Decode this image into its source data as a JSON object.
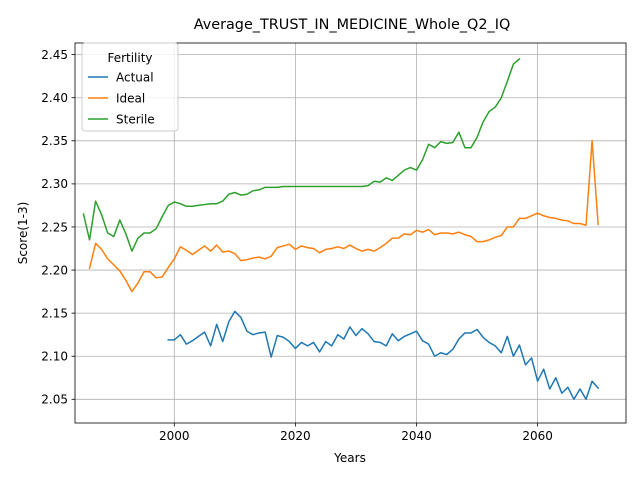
{
  "chart_data": {
    "type": "line",
    "title": "Average_TRUST_IN_MEDICINE_Whole_Q2_IQ",
    "xlabel": "Years",
    "ylabel": "Score(1-3)",
    "xlim": [
      1983.6,
      2074.6
    ],
    "ylim": [
      2.0225,
      2.4635
    ],
    "xticks": [
      2000,
      2020,
      2040,
      2060
    ],
    "yticks": [
      2.05,
      2.1,
      2.15,
      2.2,
      2.25,
      2.3,
      2.35,
      2.4,
      2.45
    ],
    "ytick_labels": [
      "2.05",
      "2.10",
      "2.15",
      "2.20",
      "2.25",
      "2.30",
      "2.35",
      "2.40",
      "2.45"
    ],
    "grid": true,
    "legend": {
      "title": "Fertility",
      "placement": "top-left"
    },
    "series": [
      {
        "name": "Actual",
        "color": "#1f77b4",
        "x": [
          1999,
          2000,
          2001,
          2002,
          2003,
          2004,
          2005,
          2006,
          2007,
          2008,
          2009,
          2010,
          2011,
          2012,
          2013,
          2014,
          2015,
          2016,
          2017,
          2018,
          2019,
          2020,
          2021,
          2022,
          2023,
          2024,
          2025,
          2026,
          2027,
          2028,
          2029,
          2030,
          2031,
          2032,
          2033,
          2034,
          2035,
          2036,
          2037,
          2038,
          2039,
          2040,
          2041,
          2042,
          2043,
          2044,
          2045,
          2046,
          2047,
          2048,
          2049,
          2050,
          2051,
          2052,
          2053,
          2054,
          2055,
          2056,
          2057,
          2058,
          2059,
          2060,
          2061,
          2062,
          2063,
          2064,
          2065,
          2066,
          2067,
          2068,
          2069,
          2070
        ],
        "values": [
          2.119,
          2.119,
          2.125,
          2.114,
          2.118,
          2.123,
          2.128,
          2.112,
          2.137,
          2.117,
          2.14,
          2.152,
          2.145,
          2.129,
          2.125,
          2.127,
          2.128,
          2.099,
          2.124,
          2.122,
          2.117,
          2.109,
          2.116,
          2.112,
          2.116,
          2.105,
          2.117,
          2.112,
          2.125,
          2.12,
          2.134,
          2.124,
          2.132,
          2.126,
          2.117,
          2.116,
          2.112,
          2.126,
          2.118,
          2.123,
          2.126,
          2.129,
          2.118,
          2.114,
          2.1,
          2.104,
          2.102,
          2.108,
          2.12,
          2.127,
          2.127,
          2.131,
          2.122,
          2.116,
          2.112,
          2.104,
          2.123,
          2.1,
          2.113,
          2.09,
          2.098,
          2.071,
          2.085,
          2.062,
          2.075,
          2.057,
          2.064,
          2.05,
          2.062,
          2.05,
          2.071,
          2.063
        ]
      },
      {
        "name": "Ideal",
        "color": "#ff7f0e",
        "x": [
          1986,
          1987,
          1988,
          1989,
          1990,
          1991,
          1992,
          1993,
          1994,
          1995,
          1996,
          1997,
          1998,
          1999,
          2000,
          2001,
          2002,
          2003,
          2004,
          2005,
          2006,
          2007,
          2008,
          2009,
          2010,
          2011,
          2012,
          2013,
          2014,
          2015,
          2016,
          2017,
          2018,
          2019,
          2020,
          2021,
          2022,
          2023,
          2024,
          2025,
          2026,
          2027,
          2028,
          2029,
          2030,
          2031,
          2032,
          2033,
          2034,
          2035,
          2036,
          2037,
          2038,
          2039,
          2040,
          2041,
          2042,
          2043,
          2044,
          2045,
          2046,
          2047,
          2048,
          2049,
          2050,
          2051,
          2052,
          2053,
          2054,
          2055,
          2056,
          2057,
          2058,
          2059,
          2060,
          2061,
          2062,
          2063,
          2064,
          2065,
          2066,
          2067,
          2068,
          2069,
          2070
        ],
        "values": [
          2.202,
          2.231,
          2.224,
          2.213,
          2.206,
          2.199,
          2.188,
          2.175,
          2.185,
          2.198,
          2.198,
          2.191,
          2.192,
          2.203,
          2.213,
          2.227,
          2.223,
          2.218,
          2.223,
          2.228,
          2.222,
          2.229,
          2.221,
          2.222,
          2.219,
          2.211,
          2.212,
          2.214,
          2.215,
          2.213,
          2.216,
          2.226,
          2.228,
          2.23,
          2.224,
          2.228,
          2.226,
          2.225,
          2.22,
          2.224,
          2.225,
          2.227,
          2.225,
          2.229,
          2.225,
          2.222,
          2.224,
          2.222,
          2.226,
          2.231,
          2.237,
          2.237,
          2.242,
          2.241,
          2.246,
          2.244,
          2.247,
          2.241,
          2.243,
          2.243,
          2.242,
          2.244,
          2.241,
          2.239,
          2.233,
          2.233,
          2.235,
          2.238,
          2.24,
          2.25,
          2.25,
          2.26,
          2.26,
          2.263,
          2.266,
          2.263,
          2.261,
          2.26,
          2.258,
          2.257,
          2.254,
          2.254,
          2.252,
          2.35,
          2.253
        ]
      },
      {
        "name": "Sterile",
        "color": "#2ca02c",
        "x": [
          1985,
          1986,
          1987,
          1988,
          1989,
          1990,
          1991,
          1992,
          1993,
          1994,
          1995,
          1996,
          1997,
          1998,
          1999,
          2000,
          2001,
          2002,
          2003,
          2004,
          2005,
          2006,
          2007,
          2008,
          2009,
          2010,
          2011,
          2012,
          2013,
          2014,
          2015,
          2016,
          2017,
          2018,
          2019,
          2020,
          2021,
          2022,
          2023,
          2024,
          2025,
          2026,
          2027,
          2028,
          2029,
          2030,
          2031,
          2032,
          2033,
          2034,
          2035,
          2036,
          2037,
          2038,
          2039,
          2040,
          2041,
          2042,
          2043,
          2044,
          2045,
          2046,
          2047,
          2048,
          2049,
          2050,
          2051,
          2052,
          2053,
          2054,
          2055,
          2056,
          2057
        ],
        "values": [
          2.265,
          2.235,
          2.28,
          2.264,
          2.243,
          2.239,
          2.258,
          2.242,
          2.222,
          2.237,
          2.243,
          2.243,
          2.248,
          2.262,
          2.275,
          2.279,
          2.277,
          2.274,
          2.274,
          2.275,
          2.276,
          2.277,
          2.277,
          2.28,
          2.288,
          2.29,
          2.287,
          2.288,
          2.292,
          2.293,
          2.296,
          2.296,
          2.296,
          2.297,
          2.297,
          2.297,
          2.297,
          2.297,
          2.297,
          2.297,
          2.297,
          2.297,
          2.297,
          2.297,
          2.297,
          2.297,
          2.297,
          2.298,
          2.303,
          2.302,
          2.307,
          2.304,
          2.31,
          2.316,
          2.319,
          2.316,
          2.328,
          2.346,
          2.342,
          2.349,
          2.347,
          2.348,
          2.36,
          2.342,
          2.342,
          2.354,
          2.372,
          2.384,
          2.389,
          2.4,
          2.419,
          2.439,
          2.445
        ]
      }
    ]
  }
}
